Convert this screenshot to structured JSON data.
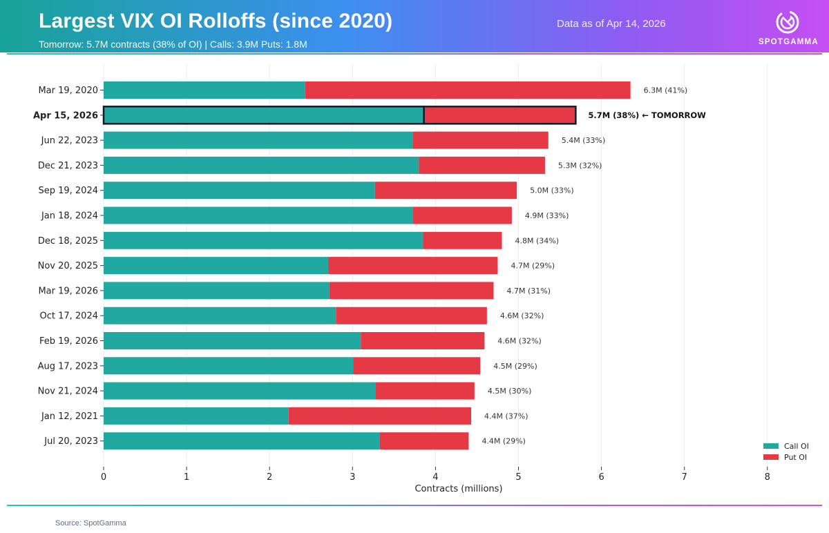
{
  "header": {
    "title": "Largest VIX OI Rolloffs (since 2020)",
    "subtitle": "Tomorrow: 5.7M contracts (38% of OI)  |  Calls: 3.9M  Puts: 1.8M",
    "as_of": "Data as of Apr 14, 2026",
    "brand": "SPOTGAMMA",
    "logo_icon": "spotgamma-logo-icon"
  },
  "footer": {
    "source": "Source: SpotGamma"
  },
  "colors": {
    "call": "#21a8a1",
    "put": "#e63946",
    "highlight_border": "#0f1d2e",
    "grid": "#ebebeb",
    "text": "#222222"
  },
  "chart_data": {
    "type": "bar",
    "orientation": "horizontal",
    "stacked": true,
    "title": "Largest VIX OI Rolloffs (since 2020)",
    "xlabel": "Contracts (millions)",
    "ylabel": "",
    "xlim": [
      0,
      8
    ],
    "xticks": [
      0,
      1,
      2,
      3,
      4,
      5,
      6,
      7,
      8
    ],
    "grid": "vertical",
    "legend_position": "bottom-right",
    "categories": [
      "Mar 19, 2020",
      "Apr 15, 2026",
      "Jun 22, 2023",
      "Dec 21, 2023",
      "Sep 19, 2024",
      "Jan 18, 2024",
      "Dec 18, 2025",
      "Nov 20, 2025",
      "Mar 19, 2026",
      "Oct 17, 2024",
      "Feb 19, 2026",
      "Aug 17, 2023",
      "Nov 21, 2024",
      "Jan 12, 2021",
      "Jul 20, 2023"
    ],
    "series": [
      {
        "name": "Call OI",
        "values": [
          2.43,
          3.86,
          3.73,
          3.8,
          3.27,
          3.73,
          3.85,
          2.71,
          2.72,
          2.8,
          3.1,
          3.01,
          3.28,
          2.23,
          3.33
        ]
      },
      {
        "name": "Put OI",
        "values": [
          3.92,
          1.83,
          1.63,
          1.52,
          1.71,
          1.19,
          0.95,
          2.04,
          1.98,
          1.82,
          1.49,
          1.53,
          1.19,
          2.2,
          1.07
        ]
      }
    ],
    "bar_labels": [
      "6.3M  (41%)",
      "5.7M  (38%)  ← TOMORROW",
      "5.4M  (33%)",
      "5.3M  (32%)",
      "5.0M  (33%)",
      "4.9M  (33%)",
      "4.8M  (34%)",
      "4.7M  (29%)",
      "4.7M  (31%)",
      "4.6M  (32%)",
      "4.6M  (32%)",
      "4.5M  (29%)",
      "4.5M  (30%)",
      "4.4M  (37%)",
      "4.4M  (29%)"
    ],
    "highlight_index": 1
  }
}
